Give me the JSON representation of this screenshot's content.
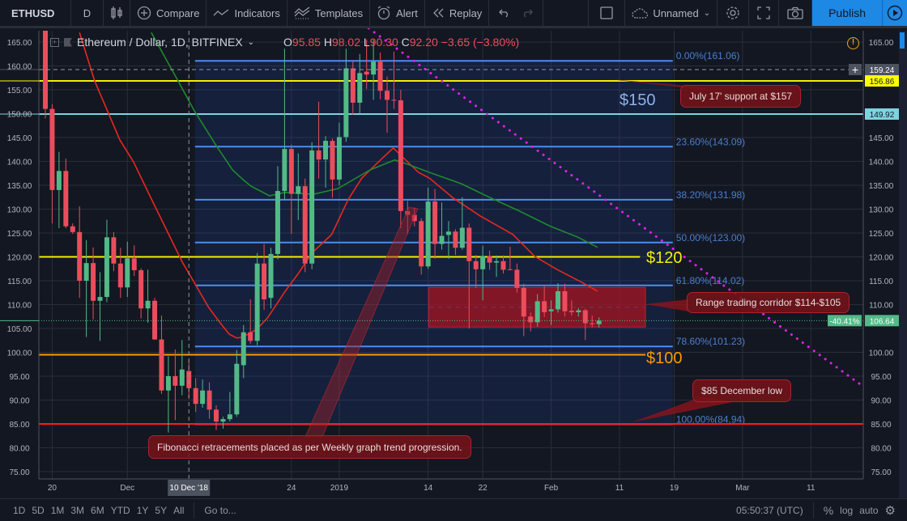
{
  "toolbar": {
    "symbol": "ETHUSD",
    "interval": "D",
    "compare": "Compare",
    "indicators": "Indicators",
    "templates": "Templates",
    "alert": "Alert",
    "replay": "Replay",
    "layout_name": "Unnamed",
    "publish": "Publish"
  },
  "legend": {
    "title": "Ethereum / Dollar, 1D, BITFINEX",
    "o_label": "O",
    "o": "95.85",
    "h_label": "H",
    "h": "98.02",
    "l_label": "L",
    "l": "90.30",
    "c_label": "C",
    "c": "92.20",
    "change": "−3.65 (−3.80%)"
  },
  "annotations": {
    "july": "July 17' support at $157",
    "range": "Range trading corridor $114-$105",
    "dec_low": "$85 December low",
    "fib": "Fibonacci retracements placed as per Weekly graph trend progression.",
    "p150": "$150",
    "p120": "$120",
    "p100": "$100"
  },
  "bottom": {
    "ranges": [
      "1D",
      "5D",
      "1M",
      "3M",
      "6M",
      "YTD",
      "1Y",
      "5Y",
      "All"
    ],
    "goto": "Go to...",
    "time": "05:50:37 (UTC)",
    "percent": "%",
    "log": "log",
    "auto": "auto"
  },
  "colors": {
    "up": "#53b987",
    "down": "#eb4d5c",
    "fib": "#4a8ef0",
    "ma_fast": "#e8281e",
    "ma_slow": "#1e8a2e",
    "trend": "#e020e8",
    "accent": "#1e88e5"
  },
  "chart_data": {
    "type": "candlestick",
    "symbol": "ETHUSD",
    "start_date": "2018-11-19",
    "ylim": [
      75,
      165
    ],
    "y_ticks": [
      "165.00",
      "160.00",
      "155.00",
      "150.00",
      "145.00",
      "140.00",
      "135.00",
      "130.00",
      "125.00",
      "120.00",
      "115.00",
      "110.00",
      "105.00",
      "100.00",
      "95.00",
      "90.00",
      "85.00",
      "80.00",
      "75.00"
    ],
    "x_ticks": [
      {
        "day": 1,
        "label": "20"
      },
      {
        "day": 12,
        "label": "Dec"
      },
      {
        "day": 36,
        "label": "24"
      },
      {
        "day": 43,
        "label": "2019"
      },
      {
        "day": 56,
        "label": "14"
      },
      {
        "day": 64,
        "label": "22"
      },
      {
        "day": 74,
        "label": "Feb"
      },
      {
        "day": 84,
        "label": "11"
      },
      {
        "day": 92,
        "label": "19"
      },
      {
        "day": 102,
        "label": "Mar"
      },
      {
        "day": 112,
        "label": "11"
      }
    ],
    "crosshair": {
      "day": 21,
      "label": "10 Dec '18",
      "price": 159.24,
      "price_label": "159.24"
    },
    "ohlc": [
      [
        175,
        180,
        149,
        151
      ],
      [
        151,
        152,
        127,
        134
      ],
      [
        134,
        142,
        126,
        138
      ],
      [
        138,
        140.6,
        126,
        126.4
      ],
      [
        126.4,
        127,
        124.8,
        125.2
      ],
      [
        125.2,
        130.6,
        111.4,
        115
      ],
      [
        115,
        123.5,
        103.2,
        118.7
      ],
      [
        118.7,
        122,
        106.9,
        110.8
      ],
      [
        110.8,
        116.8,
        102.4,
        111.6
      ],
      [
        111.6,
        127.8,
        110.5,
        124.1
      ],
      [
        124.1,
        125.2,
        117,
        118.6
      ],
      [
        118.6,
        121.9,
        111.4,
        113.6
      ],
      [
        113.6,
        123.2,
        111.6,
        119.7
      ],
      [
        119.7,
        122.4,
        116,
        117.2
      ],
      [
        117.2,
        117.6,
        107.1,
        109.2
      ],
      [
        109.2,
        117.3,
        106.2,
        110.8
      ],
      [
        110.8,
        111.4,
        102.6,
        102.7
      ],
      [
        102.7,
        107.7,
        91.3,
        92
      ],
      [
        92,
        99.2,
        83.2,
        95
      ],
      [
        95,
        100.6,
        85.8,
        93
      ],
      [
        93,
        102.6,
        91,
        96.4
      ],
      [
        96.1,
        98.3,
        90.5,
        92.5
      ],
      [
        92.5,
        94.6,
        87.5,
        89.2
      ],
      [
        89.2,
        94.3,
        88.4,
        92
      ],
      [
        92,
        93.7,
        86.1,
        88
      ],
      [
        88,
        88.9,
        83.7,
        85.5
      ],
      [
        85.5,
        86.5,
        84,
        86
      ],
      [
        86,
        91.7,
        85.5,
        87
      ],
      [
        87,
        100.5,
        86.5,
        97.6
      ],
      [
        97.3,
        105.7,
        94.6,
        104.2
      ],
      [
        104.2,
        111.1,
        101.8,
        102.4
      ],
      [
        102.4,
        120.8,
        101.5,
        118.6
      ],
      [
        118.6,
        122.7,
        108.9,
        111.1
      ],
      [
        111.4,
        121.9,
        109.2,
        120.6
      ],
      [
        120.6,
        139,
        119.5,
        133.8
      ],
      [
        133.8,
        163.6,
        132,
        142.6
      ],
      [
        142.6,
        143.5,
        124.8,
        133.2
      ],
      [
        133.2,
        141.7,
        127.7,
        134.8
      ],
      [
        134.8,
        136.4,
        116.8,
        118.6
      ],
      [
        118.6,
        144,
        117.4,
        142.3
      ],
      [
        142.3,
        152.5,
        136.4,
        140.4
      ],
      [
        140.4,
        145.3,
        134.5,
        144.3
      ],
      [
        144.3,
        144.8,
        132.4,
        136.2
      ],
      [
        136.2,
        148.1,
        135,
        145.1
      ],
      [
        145.1,
        163.6,
        144.1,
        159.5
      ],
      [
        159.5,
        161,
        149.8,
        152.3
      ],
      [
        152.3,
        162.5,
        150,
        158.5
      ],
      [
        158.8,
        165.5,
        155.2,
        158.2
      ],
      [
        158.2,
        165.5,
        152.9,
        160.9
      ],
      [
        160.9,
        162.8,
        153,
        154.8
      ],
      [
        154.8,
        157.8,
        146,
        152.9
      ],
      [
        152.9,
        163,
        151,
        152.8
      ],
      [
        152.8,
        155,
        126,
        129.6
      ],
      [
        129.6,
        131.7,
        124.8,
        128.8
      ],
      [
        128.8,
        130.3,
        126.4,
        127.5
      ],
      [
        127.5,
        128.1,
        116.3,
        118
      ],
      [
        118,
        134.5,
        117.5,
        131.6
      ],
      [
        131.6,
        134.2,
        119.6,
        122.7
      ],
      [
        122.7,
        131.4,
        121.5,
        124.4
      ],
      [
        124.6,
        127.5,
        119.6,
        125.3
      ],
      [
        125.3,
        125.8,
        120.4,
        121.9
      ],
      [
        121.9,
        132.5,
        121.5,
        126.1
      ],
      [
        126.1,
        127,
        105,
        119.1
      ],
      [
        119.1,
        120.4,
        113.5,
        117.4
      ],
      [
        117.4,
        122.3,
        110.9,
        120.2
      ],
      [
        120.2,
        121.3,
        117.3,
        118.8
      ],
      [
        118.8,
        120.3,
        115.8,
        119.1
      ],
      [
        119.1,
        120.3,
        116.5,
        117.3
      ],
      [
        117.4,
        122.1,
        117.2,
        117.3
      ],
      [
        117.3,
        118.6,
        112.5,
        113.5
      ],
      [
        113.5,
        114.4,
        103.4,
        107.5
      ],
      [
        107.5,
        108.3,
        104.4,
        106.3
      ],
      [
        106.3,
        112.2,
        105.4,
        110.7
      ],
      [
        110.7,
        114.1,
        107.4,
        108.4
      ],
      [
        108.6,
        110.9,
        105.7,
        109
      ],
      [
        109,
        114.5,
        108.3,
        112.8
      ],
      [
        112.8,
        114.4,
        107.5,
        108.6
      ],
      [
        108.7,
        110.9,
        107.7,
        108.4
      ],
      [
        108.4,
        109.3,
        107.5,
        108.8
      ],
      [
        108.8,
        109.1,
        102.6,
        106.1
      ],
      [
        106.1,
        107.7,
        105.2,
        105.9
      ],
      [
        105.9,
        107.3,
        105.2,
        106.64
      ]
    ],
    "last_price": {
      "value": 106.64,
      "label": "106.64",
      "change_label": "-40.41%"
    },
    "ma_fast": [
      [
        5,
        167
      ],
      [
        7.2,
        156.9
      ],
      [
        10.9,
        144.5
      ],
      [
        12.9,
        139.9
      ],
      [
        15.9,
        131
      ],
      [
        17.1,
        127.5
      ],
      [
        20,
        119
      ],
      [
        22.2,
        113.6
      ],
      [
        23.9,
        109.4
      ],
      [
        25.4,
        106.5
      ],
      [
        26.9,
        103.8
      ],
      [
        28,
        103
      ],
      [
        28.9,
        103.2
      ],
      [
        30.9,
        104.8
      ],
      [
        32.5,
        107.2
      ],
      [
        35.1,
        112.8
      ],
      [
        37,
        116.5
      ],
      [
        39,
        120.8
      ],
      [
        41.9,
        124.7
      ],
      [
        44.3,
        132
      ],
      [
        46.3,
        136.5
      ],
      [
        49.1,
        140.4
      ],
      [
        50.9,
        142.8
      ],
      [
        53,
        139.9
      ],
      [
        54.6,
        137.7
      ],
      [
        56.2,
        136.5
      ],
      [
        59.7,
        132.3
      ],
      [
        63.6,
        128.6
      ],
      [
        68.4,
        124.7
      ],
      [
        71.6,
        120.1
      ],
      [
        74.8,
        117.4
      ],
      [
        78.7,
        114.5
      ],
      [
        80.8,
        112.8
      ]
    ],
    "ma_slow": [
      [
        15.5,
        167
      ],
      [
        19.4,
        156.9
      ],
      [
        21.8,
        150.6
      ],
      [
        25,
        143.3
      ],
      [
        27.4,
        138.2
      ],
      [
        28.9,
        136.2
      ],
      [
        30.1,
        134.8
      ],
      [
        32.8,
        132.8
      ],
      [
        35.1,
        133.5
      ],
      [
        39.2,
        133.1
      ],
      [
        42.8,
        134.3
      ],
      [
        47.5,
        138.2
      ],
      [
        51.1,
        140.3
      ],
      [
        53,
        139.4
      ],
      [
        56.2,
        137.7
      ],
      [
        60.9,
        135.3
      ],
      [
        64.5,
        132.8
      ],
      [
        69.2,
        129.7
      ],
      [
        73.9,
        126.4
      ],
      [
        77.8,
        124.2
      ],
      [
        80.8,
        122
      ]
    ],
    "fibonacci": {
      "start_day": 21.9,
      "end_day": 91.8,
      "levels": [
        {
          "price": 161.06,
          "label": "0.00%(161.06)"
        },
        {
          "price": 143.09,
          "label": "23.60%(143.09)"
        },
        {
          "price": 131.98,
          "label": "38.20%(131.98)"
        },
        {
          "price": 123.0,
          "label": "50.00%(123.00)"
        },
        {
          "price": 114.02,
          "label": "61.80%(114.02)"
        },
        {
          "price": 101.23,
          "label": "78.60%(101.23)"
        },
        {
          "price": 84.94,
          "label": "100.00%(84.94)"
        }
      ]
    },
    "horizontal_lines": [
      {
        "name": "july-support",
        "price": 156.86,
        "label": "156.86",
        "color": "#f0f000",
        "label_bg": "#ffff00"
      },
      {
        "name": "line-150",
        "price": 149.92,
        "label": "149.92",
        "color": "#7fd3e0",
        "label_bg": "#7fd3e0"
      },
      {
        "name": "line-120",
        "price": 120,
        "color": "#f0f000",
        "end_day": 87
      },
      {
        "name": "line-100",
        "price": 99.5,
        "color": "#ff9800",
        "end_day": 87.8
      },
      {
        "name": "december-low",
        "price": 85,
        "color": "#ff1a1a"
      }
    ],
    "range_zone": {
      "start_day": 56.1,
      "end_day": 87.8,
      "top": 113.6,
      "bottom": 105.3,
      "color": "#9c1420"
    },
    "trendline": {
      "from": [
        47.3,
        167.9
      ],
      "to": [
        119.7,
        92.8
      ]
    }
  }
}
